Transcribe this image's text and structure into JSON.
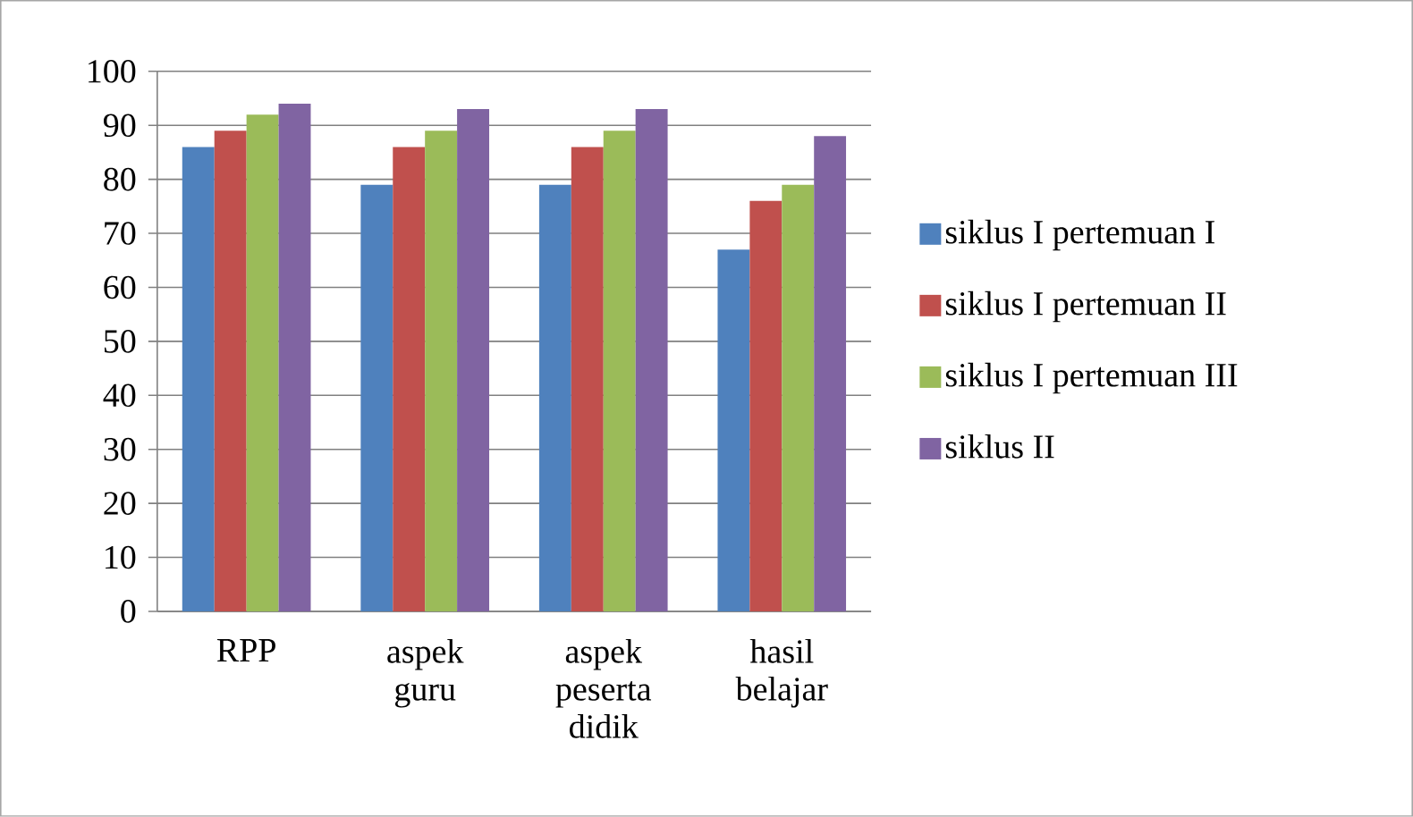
{
  "chart_data": {
    "type": "bar",
    "categories": [
      "RPP",
      "aspek guru",
      "aspek peserta didik",
      "hasil belajar"
    ],
    "series": [
      {
        "name": "siklus I pertemuan I",
        "color": "#4f81bd",
        "values": [
          86,
          79,
          79,
          67
        ]
      },
      {
        "name": "siklus I pertemuan II",
        "color": "#c0504d",
        "values": [
          89,
          86,
          86,
          76
        ]
      },
      {
        "name": "siklus I pertemuan III",
        "color": "#9bbb59",
        "values": [
          92,
          89,
          89,
          79
        ]
      },
      {
        "name": "siklus II",
        "color": "#8064a2",
        "values": [
          94,
          93,
          93,
          88
        ]
      }
    ],
    "ylim": [
      0,
      100
    ],
    "yticks": [
      0,
      10,
      20,
      30,
      40,
      50,
      60,
      70,
      80,
      90,
      100
    ],
    "grid": "y",
    "legend": "right"
  }
}
